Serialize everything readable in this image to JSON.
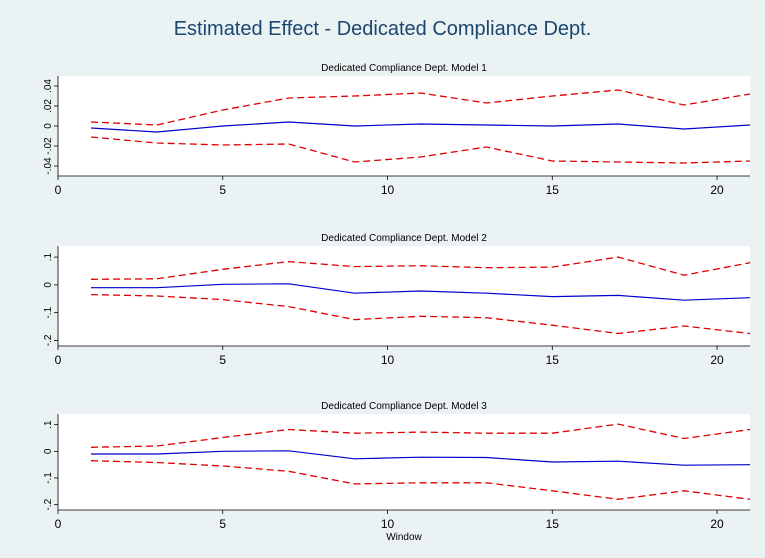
{
  "figure": {
    "title": "Estimated Effect - Dedicated Compliance Dept.",
    "xlabel": "Window"
  },
  "colors": {
    "background": "#eaf2f3",
    "plot_area": "#ffffff",
    "title": "#1a476f",
    "estimate_line": "#0000cc",
    "ci_line": "#e00000"
  },
  "chart_data": [
    {
      "type": "line",
      "title": "Dedicated Compliance Dept. Model 1",
      "xlabel": "",
      "ylabel": "",
      "xlim": [
        0,
        21
      ],
      "ylim": [
        -0.05,
        0.05
      ],
      "xticks": [
        0,
        5,
        10,
        15,
        20
      ],
      "yticks": [
        -0.04,
        -0.02,
        0,
        0.02,
        0.04
      ],
      "ytick_labels": [
        "-.04",
        "-.02",
        "0",
        ".02",
        ".04"
      ],
      "x": [
        1,
        3,
        5,
        7,
        9,
        11,
        13,
        15,
        17,
        19,
        21
      ],
      "series": [
        {
          "style": "solid",
          "color": "#0000cc",
          "values": [
            -0.002,
            -0.006,
            0,
            0.004,
            0,
            0.002,
            0.001,
            0,
            0.002,
            -0.003,
            0.001
          ]
        },
        {
          "style": "dashed",
          "color": "#e00000",
          "values": [
            0.004,
            0.001,
            0.016,
            0.028,
            0.03,
            0.033,
            0.023,
            0.03,
            0.036,
            0.021,
            0.032
          ]
        },
        {
          "style": "dashed",
          "color": "#e00000",
          "values": [
            -0.011,
            -0.017,
            -0.019,
            -0.018,
            -0.036,
            -0.031,
            -0.021,
            -0.035,
            -0.036,
            -0.037,
            -0.035
          ]
        }
      ]
    },
    {
      "type": "line",
      "title": "Dedicated Compliance Dept. Model 2",
      "xlabel": "",
      "ylabel": "",
      "xlim": [
        0,
        21
      ],
      "ylim": [
        -0.22,
        0.14
      ],
      "xticks": [
        0,
        5,
        10,
        15,
        20
      ],
      "yticks": [
        -0.2,
        -0.1,
        0,
        0.1
      ],
      "ytick_labels": [
        "-.2",
        "-.1",
        "0",
        ".1"
      ],
      "x": [
        1,
        3,
        5,
        7,
        9,
        11,
        13,
        15,
        17,
        19,
        21
      ],
      "series": [
        {
          "style": "solid",
          "color": "#0000cc",
          "values": [
            -0.01,
            -0.01,
            0.002,
            0.004,
            -0.03,
            -0.022,
            -0.03,
            -0.042,
            -0.038,
            -0.055,
            -0.046
          ]
        },
        {
          "style": "dashed",
          "color": "#e00000",
          "values": [
            0.02,
            0.022,
            0.056,
            0.084,
            0.066,
            0.069,
            0.062,
            0.064,
            0.1,
            0.035,
            0.08
          ]
        },
        {
          "style": "dashed",
          "color": "#e00000",
          "values": [
            -0.035,
            -0.04,
            -0.053,
            -0.078,
            -0.125,
            -0.113,
            -0.118,
            -0.145,
            -0.175,
            -0.148,
            -0.175
          ]
        }
      ]
    },
    {
      "type": "line",
      "title": "Dedicated Compliance Dept. Model 3",
      "xlabel": "Window",
      "ylabel": "",
      "xlim": [
        0,
        21
      ],
      "ylim": [
        -0.22,
        0.14
      ],
      "xticks": [
        0,
        5,
        10,
        15,
        20
      ],
      "yticks": [
        -0.2,
        -0.1,
        0,
        0.1
      ],
      "ytick_labels": [
        "-.2",
        "-.1",
        "0",
        ".1"
      ],
      "x": [
        1,
        3,
        5,
        7,
        9,
        11,
        13,
        15,
        17,
        19,
        21
      ],
      "series": [
        {
          "style": "solid",
          "color": "#0000cc",
          "values": [
            -0.01,
            -0.01,
            0,
            0.002,
            -0.028,
            -0.022,
            -0.023,
            -0.04,
            -0.037,
            -0.052,
            -0.05
          ]
        },
        {
          "style": "dashed",
          "color": "#e00000",
          "values": [
            0.015,
            0.02,
            0.052,
            0.082,
            0.068,
            0.072,
            0.068,
            0.068,
            0.102,
            0.048,
            0.082
          ]
        },
        {
          "style": "dashed",
          "color": "#e00000",
          "values": [
            -0.035,
            -0.042,
            -0.055,
            -0.075,
            -0.122,
            -0.118,
            -0.118,
            -0.148,
            -0.18,
            -0.148,
            -0.18
          ]
        }
      ]
    }
  ]
}
